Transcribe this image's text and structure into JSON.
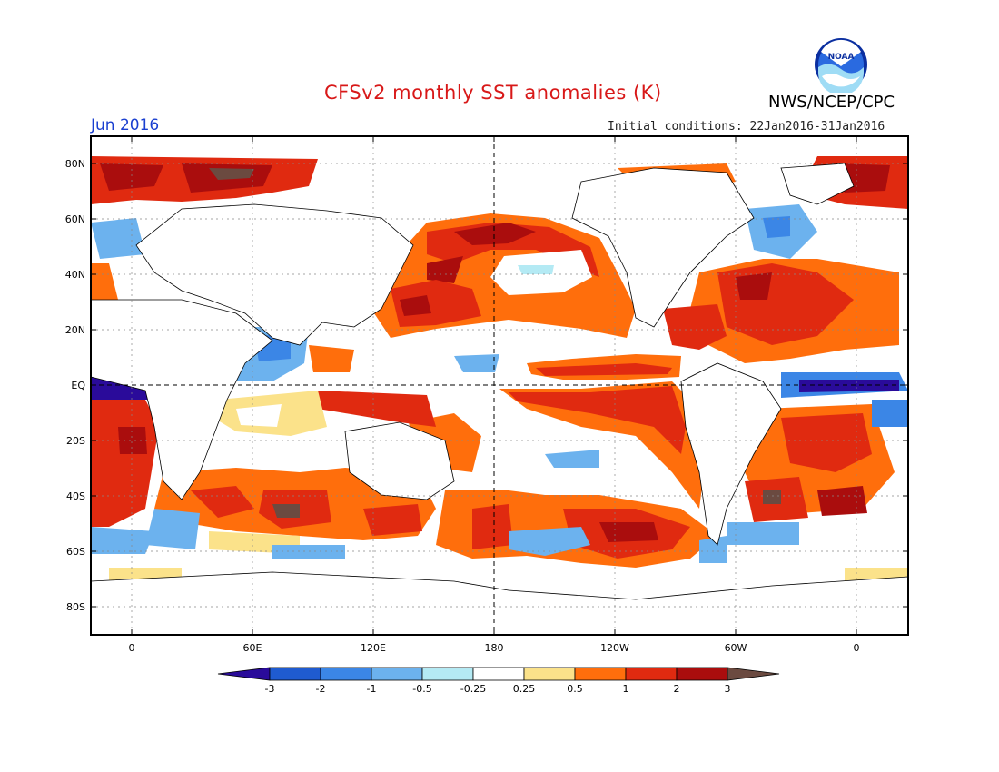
{
  "title": "CFSv2 monthly SST anomalies (K)",
  "month_label": "Jun 2016",
  "initial_conditions": "Initial conditions: 22Jan2016-31Jan2016",
  "organization": "NWS/NCEP/CPC",
  "logo": {
    "text": "NOAA",
    "icon": "noaa-logo-icon"
  },
  "map": {
    "lat_ticks": [
      "80N",
      "60N",
      "40N",
      "20N",
      "EQ",
      "20S",
      "40S",
      "60S",
      "80S"
    ],
    "lon_ticks": [
      "0",
      "60E",
      "120E",
      "180",
      "120W",
      "60W",
      "0"
    ],
    "reference_lines": [
      "Equator",
      "180 meridian"
    ]
  },
  "colorbar": {
    "tick_labels": [
      "-3",
      "-2",
      "-1",
      "-0.5",
      "-0.25",
      "0.25",
      "0.5",
      "1",
      "2",
      "3"
    ],
    "colors": {
      "lt_neg3": "#2a0b9a",
      "neg3_neg2": "#1f5bd0",
      "neg2_neg1": "#3b86e6",
      "neg1_neg05": "#6cb2ee",
      "neg05_neg025": "#b4eaf4",
      "neutral": "#ffffff",
      "p025_p05": "#fbe28a",
      "p05_p1": "#ff6e0c",
      "p1_p2": "#e02a10",
      "p2_p3": "#aa0d0d",
      "gt_p3": "#6b4a40"
    }
  }
}
